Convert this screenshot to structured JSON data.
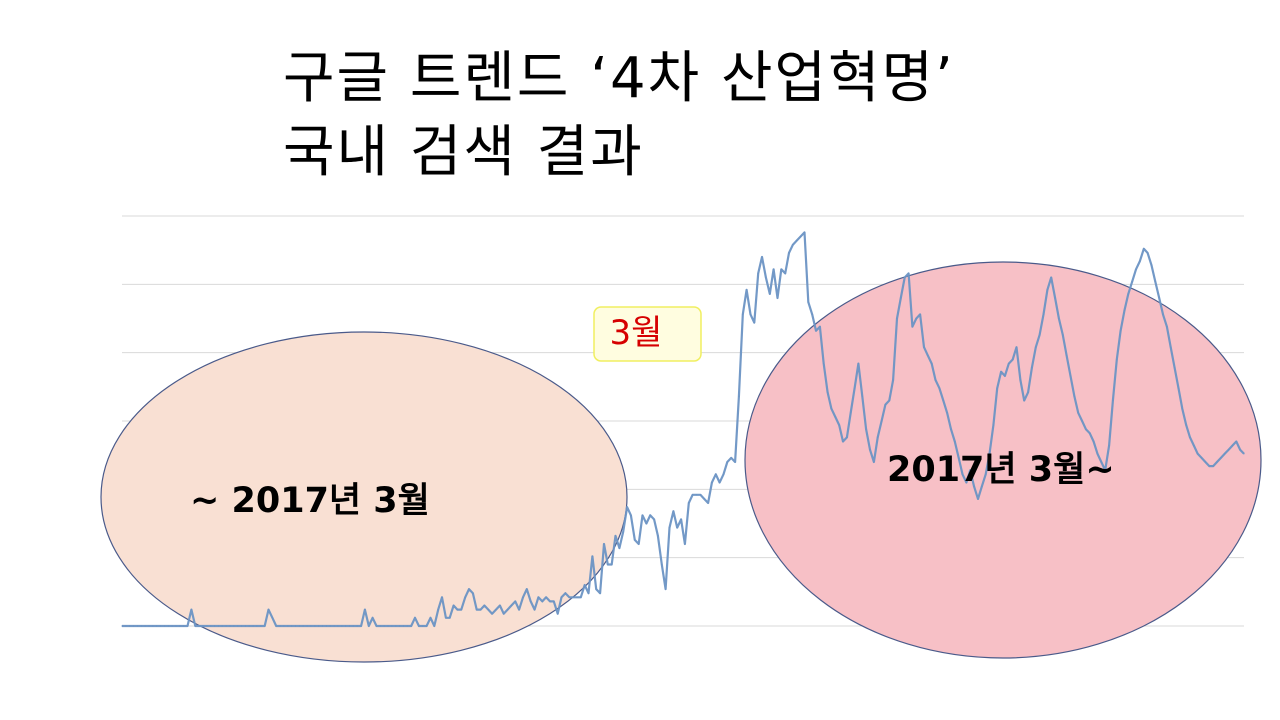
{
  "title": {
    "line1": "구글 트렌드 ‘4차 산업혁명’",
    "line2": "국내 검색 결과"
  },
  "chart_data": {
    "type": "line",
    "title": "구글 트렌드 ‘4차 산업혁명’ 국내 검색 결과",
    "xlabel": "",
    "ylabel": "",
    "ylim": [
      0,
      100
    ],
    "grid": true,
    "colors": {
      "line": "#6b93c4",
      "left_region_fill": "#f9e0d3",
      "right_region_fill": "#f7c0c6",
      "region_stroke": "#4a5a8a",
      "callout_fill": "#fffde0",
      "callout_stroke": "#f0ef60",
      "callout_text": "#d60000"
    },
    "series": [
      {
        "values": [
          0,
          0,
          0,
          0,
          0,
          0,
          0,
          0,
          0,
          0,
          0,
          0,
          0,
          0,
          0,
          0,
          0,
          0,
          4,
          0,
          0,
          0,
          0,
          0,
          0,
          0,
          0,
          0,
          0,
          0,
          0,
          0,
          0,
          0,
          0,
          0,
          0,
          0,
          4,
          2,
          0,
          0,
          0,
          0,
          0,
          0,
          0,
          0,
          0,
          0,
          0,
          0,
          0,
          0,
          0,
          0,
          0,
          0,
          0,
          0,
          0,
          0,
          0,
          4,
          0,
          2,
          0,
          0,
          0,
          0,
          0,
          0,
          0,
          0,
          0,
          0,
          2,
          0,
          0,
          0,
          2,
          0,
          4,
          7,
          2,
          2,
          5,
          4,
          4,
          7,
          9,
          8,
          4,
          4,
          5,
          4,
          3,
          4,
          5,
          3,
          4,
          5,
          6,
          4,
          7,
          9,
          6,
          4,
          7,
          6,
          7,
          6,
          6,
          3,
          7,
          8,
          7,
          7,
          7,
          7,
          10,
          8,
          17,
          9,
          8,
          20,
          15,
          15,
          22,
          19,
          23,
          29,
          27,
          21,
          20,
          27,
          25,
          27,
          26,
          22,
          15,
          9,
          24,
          28,
          24,
          26,
          20,
          30,
          32,
          32,
          32,
          31,
          30,
          35,
          37,
          35,
          37,
          40,
          41,
          40,
          56,
          76,
          82,
          76,
          74,
          86,
          90,
          85,
          81,
          87,
          80,
          87,
          86,
          91,
          93,
          94,
          95,
          96,
          79,
          76,
          72,
          73,
          64,
          57,
          53,
          51,
          49,
          45,
          46,
          52,
          58,
          64,
          56,
          48,
          43,
          40,
          46,
          50,
          54,
          55,
          60,
          75,
          80,
          85,
          86,
          73,
          75,
          76,
          68,
          66,
          64,
          60,
          58,
          55,
          52,
          48,
          45,
          41,
          37,
          35,
          38,
          34,
          31,
          34,
          37,
          42,
          49,
          58,
          62,
          61,
          64,
          65,
          68,
          60,
          55,
          57,
          63,
          68,
          71,
          76,
          82,
          85,
          80,
          75,
          71,
          66,
          61,
          56,
          52,
          50,
          48,
          47,
          45,
          42,
          40,
          38,
          44,
          55,
          65,
          72,
          77,
          81,
          84,
          87,
          89,
          92,
          91,
          88,
          84,
          80,
          76,
          73,
          68,
          63,
          58,
          53,
          49,
          46,
          44,
          42,
          41,
          40,
          39,
          39,
          40,
          41,
          42,
          43,
          44,
          45,
          43,
          42
        ]
      }
    ],
    "annotations": [
      {
        "text": "3월",
        "style": "callout"
      },
      {
        "text": "~ 2017년 3월",
        "style": "region-left"
      },
      {
        "text": "2017년 3월~",
        "style": "region-right"
      }
    ]
  }
}
